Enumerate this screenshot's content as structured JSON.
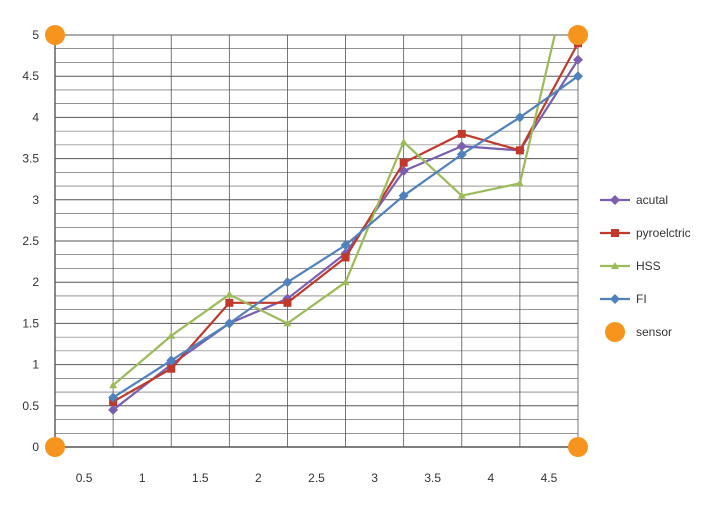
{
  "chart_data": {
    "type": "line",
    "x": [
      0.5,
      1,
      1.5,
      2,
      2.5,
      3,
      3.5,
      4,
      4.5
    ],
    "x_tick_labels": [
      "0.5",
      "1",
      "1.5",
      "2",
      "2.5",
      "3",
      "3.5",
      "4",
      "4.5"
    ],
    "y_tick_labels": [
      "0",
      "0.5",
      "1",
      "1.5",
      "2",
      "2.5",
      "3",
      "3.5",
      "4",
      "4.5",
      "5"
    ],
    "ylim": [
      0,
      5
    ],
    "grid": true,
    "legend_position": "right",
    "series": [
      {
        "name": "acutal",
        "color": "#7a5fb0",
        "marker": "diamond",
        "points": [
          [
            0.5,
            0.45
          ],
          [
            1,
            1.0
          ],
          [
            1.5,
            1.5
          ],
          [
            2,
            1.8
          ],
          [
            2.5,
            2.35
          ],
          [
            3,
            3.35
          ],
          [
            3.5,
            3.65
          ],
          [
            4,
            3.6
          ],
          [
            4.5,
            4.7
          ]
        ]
      },
      {
        "name": "pyroelctric",
        "color": "#c0392b",
        "marker": "square",
        "points": [
          [
            0.5,
            0.55
          ],
          [
            1,
            0.95
          ],
          [
            1.5,
            1.75
          ],
          [
            2,
            1.75
          ],
          [
            2.5,
            2.3
          ],
          [
            3,
            3.45
          ],
          [
            3.5,
            3.8
          ],
          [
            4,
            3.6
          ],
          [
            4.5,
            4.9
          ]
        ]
      },
      {
        "name": "HSS",
        "color": "#9bbb59",
        "marker": "triangle",
        "points": [
          [
            0.5,
            0.75
          ],
          [
            1,
            1.35
          ],
          [
            1.5,
            1.85
          ],
          [
            2,
            1.5
          ],
          [
            2.5,
            2.0
          ],
          [
            3,
            3.7
          ],
          [
            3.5,
            3.05
          ],
          [
            4,
            3.2
          ],
          [
            4.3,
            5.0
          ]
        ]
      },
      {
        "name": "FI",
        "color": "#4f81bd",
        "marker": "diamond",
        "points": [
          [
            0.5,
            0.6
          ],
          [
            1,
            1.05
          ],
          [
            1.5,
            1.5
          ],
          [
            2,
            2.0
          ],
          [
            2.5,
            2.45
          ],
          [
            3,
            3.05
          ],
          [
            3.5,
            3.55
          ],
          [
            4,
            4.0
          ],
          [
            4.5,
            4.5
          ]
        ]
      }
    ],
    "sensor_legend_label": "sensor",
    "sensor_points": [
      [
        0,
        0
      ],
      [
        4.5,
        0
      ],
      [
        0,
        5
      ],
      [
        4.5,
        5
      ]
    ]
  },
  "colors": {
    "sensor": "#f7941d",
    "grid": "#555555",
    "axis": "#555555"
  }
}
